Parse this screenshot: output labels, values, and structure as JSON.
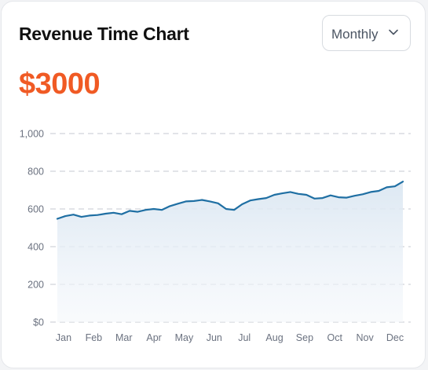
{
  "card": {
    "title": "Revenue Time Chart",
    "amount": "$3000"
  },
  "period_select": {
    "value": "Monthly",
    "icon": "chevron-down-icon"
  },
  "chart_data": {
    "type": "area",
    "title": "",
    "xlabel": "",
    "ylabel": "",
    "x_ticks": [
      "Jan",
      "Feb",
      "Mar",
      "Apr",
      "May",
      "Jun",
      "Jul",
      "Aug",
      "Sep",
      "Oct",
      "Nov",
      "Dec"
    ],
    "y_ticks": [
      "$0",
      "200",
      "400",
      "600",
      "800",
      "1,000"
    ],
    "y_tick_values": [
      0,
      200,
      400,
      600,
      800,
      1000
    ],
    "ylim": [
      0,
      1000
    ],
    "grid": true,
    "line_color": "#1f6fa3",
    "series": [
      {
        "values": [
          548,
          562,
          570,
          558,
          565,
          568,
          575,
          580,
          572,
          590,
          585,
          595,
          600,
          595,
          615,
          628,
          640,
          642,
          648,
          640,
          630,
          600,
          595,
          625,
          645,
          652,
          658,
          675,
          683,
          690,
          680,
          675,
          655,
          658,
          672,
          662,
          660,
          670,
          678,
          690,
          696,
          715,
          720,
          745
        ]
      }
    ]
  }
}
